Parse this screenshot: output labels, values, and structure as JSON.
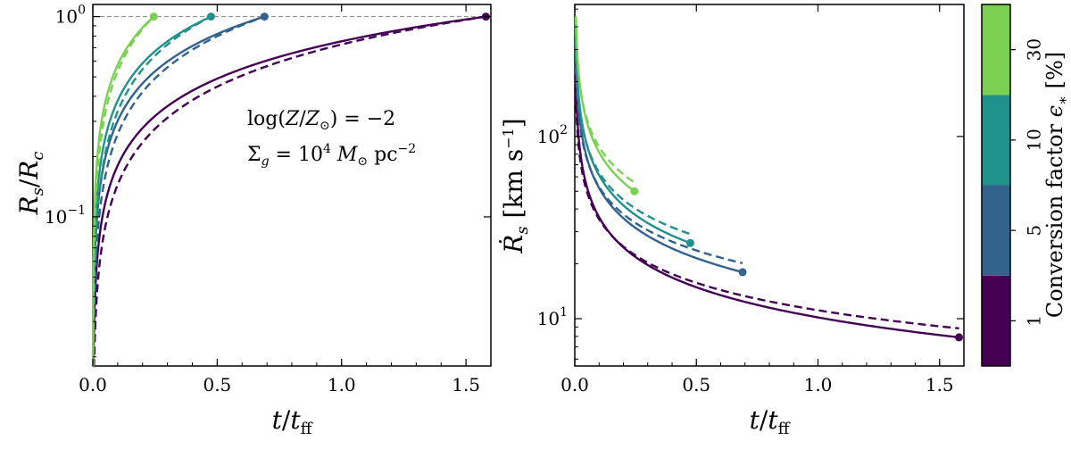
{
  "colors": {
    "eps1": "#440154",
    "eps5": "#33638d",
    "eps10": "#21918c",
    "eps30": "#7ad151",
    "reference_line": "#888888"
  },
  "chart_data": [
    {
      "type": "line",
      "panel": "left",
      "xlabel": "t/t_ff",
      "ylabel": "R_s/R_c",
      "xlabel_parts": {
        "t": "t",
        "slash": "/",
        "t2": "t",
        "sub": "ff"
      },
      "ylabel_parts": {
        "r": "R",
        "rsub": "s",
        "slash": "/",
        "r2": "R",
        "r2sub": "c"
      },
      "xlim": [
        0.0,
        1.6
      ],
      "ylim": [
        0.018,
        1.15
      ],
      "yscale": "log",
      "xticks": [
        "0.0",
        "0.5",
        "1.0",
        "1.5"
      ],
      "xtick_values": [
        0.0,
        0.5,
        1.0,
        1.5
      ],
      "yticks": [
        {
          "value": 1.0,
          "base": "10",
          "exp": "0"
        },
        {
          "value": 0.1,
          "base": "10",
          "exp": "−1"
        }
      ],
      "reference_line_y": 1.0,
      "annotation": {
        "line1_pre": "log(",
        "line1_Z": "Z",
        "line1_slash": "/",
        "line1_Zsun": "Z",
        "line1_sun": "⊙",
        "line1_post": ") = −2",
        "line2_sigma": "Σ",
        "line2_g": "g",
        "line2_eq": " = 10",
        "line2_exp": "4",
        "line2_M": " M",
        "line2_sun": "⊙",
        "line2_unit": " pc",
        "line2_unitexp": "−2"
      },
      "series": [
        {
          "name": "1",
          "color_key": "eps1",
          "end_t": 1.58,
          "end_y": 1.0
        },
        {
          "name": "5",
          "color_key": "eps5",
          "end_t": 0.69,
          "end_y": 1.0
        },
        {
          "name": "10",
          "color_key": "eps10",
          "end_t": 0.475,
          "end_y": 1.0
        },
        {
          "name": "30",
          "color_key": "eps30",
          "end_t": 0.245,
          "end_y": 1.0
        }
      ]
    },
    {
      "type": "line",
      "panel": "right",
      "xlabel": "t/t_ff",
      "ylabel": "Ṙ_s [km s^-1]",
      "xlabel_parts": {
        "t": "t",
        "slash": "/",
        "t2": "t",
        "sub": "ff"
      },
      "ylabel_parts": {
        "r": "Ṙ",
        "rsub": "s",
        "unit": " [km s",
        "unitexp": "−1",
        "close": "]"
      },
      "xlim": [
        0.0,
        1.6
      ],
      "ylim": [
        5.5,
        530
      ],
      "yscale": "log",
      "xticks": [
        "0.0",
        "0.5",
        "1.0",
        "1.5"
      ],
      "xtick_values": [
        0.0,
        0.5,
        1.0,
        1.5
      ],
      "yticks": [
        {
          "value": 100,
          "base": "10",
          "exp": "2"
        },
        {
          "value": 10,
          "base": "10",
          "exp": "1"
        }
      ],
      "series": [
        {
          "name": "1",
          "color_key": "eps1",
          "end_t": 1.58,
          "end_v": 7.9
        },
        {
          "name": "5",
          "color_key": "eps5",
          "end_t": 0.69,
          "end_v": 18
        },
        {
          "name": "10",
          "color_key": "eps10",
          "end_t": 0.475,
          "end_v": 26
        },
        {
          "name": "30",
          "color_key": "eps30",
          "end_t": 0.245,
          "end_v": 50
        }
      ]
    }
  ],
  "colorbar": {
    "label_text": "Conversion factor ",
    "label_eps": "ϵ",
    "label_star": "∗",
    "label_unit": " [%]",
    "ticks": [
      "1",
      "5",
      "10",
      "30"
    ],
    "segments": [
      "eps1",
      "eps5",
      "eps10",
      "eps30"
    ]
  }
}
